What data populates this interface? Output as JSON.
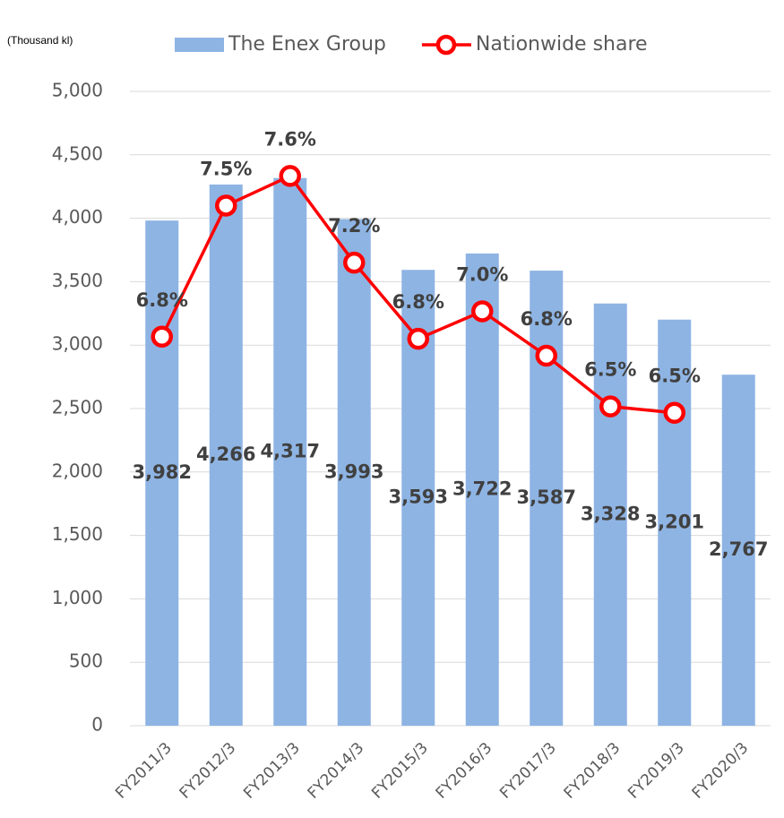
{
  "chart_data": {
    "type": "bar",
    "y_label": "(Thousand kl)",
    "categories": [
      "FY2011/3",
      "FY2012/3",
      "FY2013/3",
      "FY2014/3",
      "FY2015/3",
      "FY2016/3",
      "FY2017/3",
      "FY2018/3",
      "FY2019/3",
      "FY2020/3"
    ],
    "series": [
      {
        "name": "The Enex Group",
        "type": "bar",
        "color": "#8eb4e3",
        "values": [
          3982,
          4266,
          4317,
          3993,
          3593,
          3722,
          3587,
          3328,
          3201,
          2767
        ],
        "value_labels": [
          "3,982",
          "4,266",
          "4,317",
          "3,993",
          "3,593",
          "3,722",
          "3,587",
          "3,328",
          "3,201",
          "2,767"
        ]
      },
      {
        "name": "Nationwide share",
        "type": "line",
        "axis": "y2",
        "color": "#ff0000",
        "values": [
          6.84,
          7.46,
          7.6,
          7.19,
          6.83,
          6.96,
          6.75,
          6.51,
          6.48,
          null
        ],
        "value_labels": [
          "6.8%",
          "7.5%",
          "7.6%",
          "7.2%",
          "6.8%",
          "7.0%",
          "6.8%",
          "6.5%",
          "6.5%",
          null
        ]
      }
    ],
    "ylim": [
      0,
      5000
    ],
    "yticks": [
      0,
      500,
      {
        "value": 1000,
        "label": "1,000"
      },
      {
        "value": 1500,
        "label": "1,500"
      },
      {
        "value": 2000,
        "label": "2,000"
      },
      {
        "value": 2500,
        "label": "2,500"
      },
      {
        "value": 3000,
        "label": "3,000"
      },
      {
        "value": 3500,
        "label": "3,500"
      },
      {
        "value": 4000,
        "label": "4,000"
      },
      {
        "value": 4500,
        "label": "4,500"
      },
      {
        "value": 5000,
        "label": "5,000"
      }
    ],
    "y2lim": [
      5.0,
      8.0
    ],
    "grid": true
  }
}
